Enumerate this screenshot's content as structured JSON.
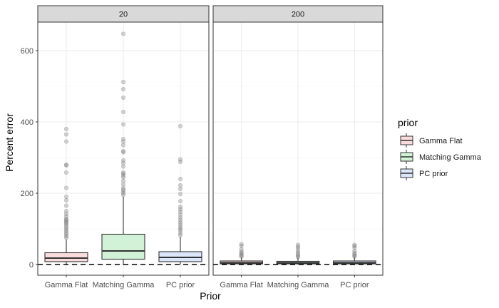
{
  "chart_data": {
    "type": "boxplot",
    "xlabel": "Prior",
    "ylabel": "Percent error",
    "ylim": [
      -30,
      680
    ],
    "yticks": [
      0,
      200,
      400,
      600
    ],
    "categories": [
      "Gamma Flat",
      "Matching Gamma",
      "PC prior"
    ],
    "facets": [
      {
        "label": "20",
        "boxes": [
          {
            "category": "Gamma Flat",
            "color": "#fbdcdc",
            "q1": 8,
            "median": 18,
            "q3": 33,
            "whisker_low": 0,
            "whisker_high": 70,
            "outliers": [
              75,
              80,
              85,
              90,
              95,
              100,
              105,
              110,
              115,
              118,
              122,
              125,
              128,
              135,
              142,
              150,
              165,
              180,
              190,
              215,
              258,
              278,
              280,
              345,
              365,
              380
            ]
          },
          {
            "category": "Matching Gamma",
            "color": "#d2f2d8",
            "q1": 15,
            "median": 38,
            "q3": 85,
            "whisker_low": 0,
            "whisker_high": 190,
            "outliers": [
              195,
              200,
              205,
              210,
              215,
              225,
              235,
              245,
              250,
              255,
              258,
              275,
              285,
              292,
              315,
              318,
              335,
              345,
              352,
              393,
              428,
              468,
              492,
              512,
              647
            ]
          },
          {
            "category": "PC prior",
            "color": "#dce6fb",
            "q1": 8,
            "median": 20,
            "q3": 36,
            "whisker_low": 0,
            "whisker_high": 78,
            "outliers": [
              82,
              88,
              95,
              100,
              105,
              112,
              118,
              125,
              132,
              140,
              148,
              155,
              162,
              178,
              198,
              212,
              222,
              240,
              288,
              295,
              388
            ]
          }
        ]
      },
      {
        "label": "200",
        "boxes": [
          {
            "category": "Gamma Flat",
            "color": "#fbdcdc",
            "q1": 2,
            "median": 5,
            "q3": 10,
            "whisker_low": 0,
            "whisker_high": 20,
            "outliers": [
              22,
              25,
              28,
              32,
              36,
              42,
              52,
              57
            ]
          },
          {
            "category": "Matching Gamma",
            "color": "#d2f2d8",
            "q1": 2,
            "median": 5,
            "q3": 9,
            "whisker_low": 0,
            "whisker_high": 19,
            "outliers": [
              21,
              24,
              28,
              33,
              38,
              45,
              50,
              55
            ]
          },
          {
            "category": "PC prior",
            "color": "#dce6fb",
            "q1": 2,
            "median": 5,
            "q3": 10,
            "whisker_low": 0,
            "whisker_high": 20,
            "outliers": [
              22,
              25,
              28,
              32,
              38,
              47,
              52,
              55
            ]
          }
        ]
      }
    ],
    "reference_line": {
      "y": 0,
      "style": "dashed"
    },
    "legend": {
      "title": "prior",
      "placement": "right",
      "entries": [
        {
          "label": "Gamma Flat",
          "color": "#fbdcdc"
        },
        {
          "label": "Matching Gamma",
          "color": "#d2f2d8"
        },
        {
          "label": "PC prior",
          "color": "#dce6fb"
        }
      ]
    },
    "grid": true
  }
}
